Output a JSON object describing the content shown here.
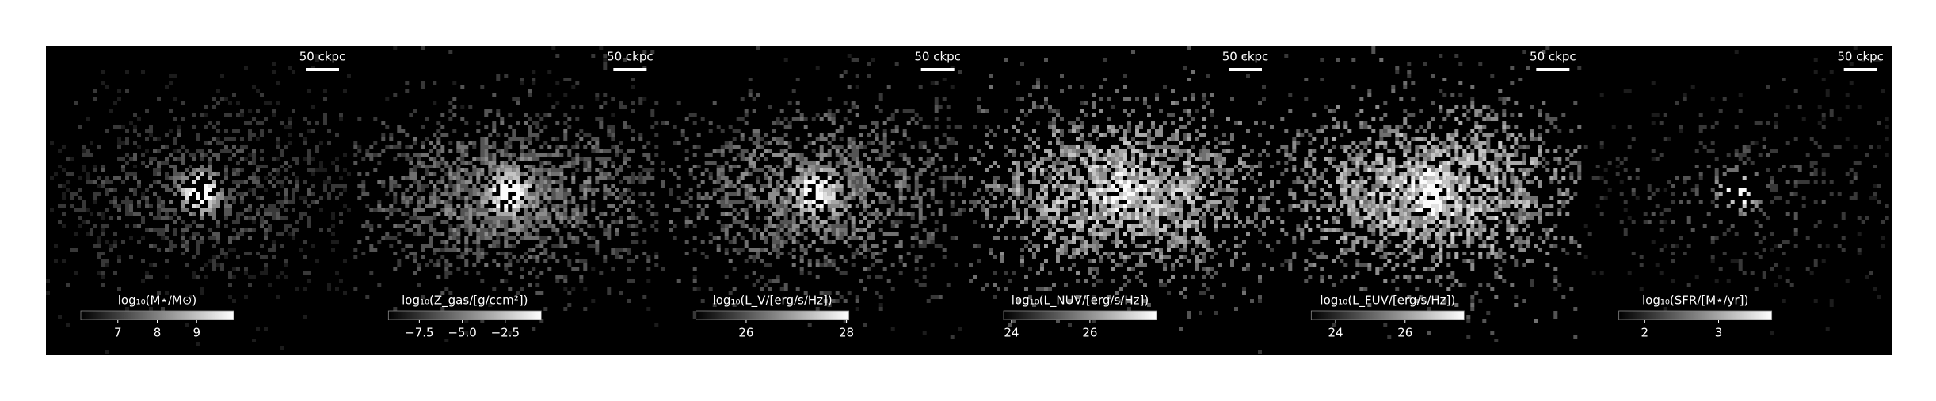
{
  "chart_data": [
    {
      "type": "image-map",
      "scalebar": "50 ckpc",
      "colorbar_label": "log₁₀(M⋆/M⊙)",
      "clim": [
        6.06,
        9.94
      ],
      "cticks": [
        7,
        8,
        9
      ]
    },
    {
      "type": "image-map",
      "scalebar": "50 ckpc",
      "colorbar_label": "log₁₀(Z_gas/[g/ccm²])",
      "clim": [
        -9.3,
        -0.4
      ],
      "cticks": [
        {
          "value": -7.5,
          "label": "−7.5"
        },
        {
          "value": -5.0,
          "label": "−5.0"
        },
        {
          "value": -2.5,
          "label": "−2.5"
        }
      ]
    },
    {
      "type": "image-map",
      "scalebar": "50 ckpc",
      "colorbar_label": "log₁₀(L_V/[erg/s/Hz])",
      "clim": [
        25.0,
        28.05
      ],
      "cticks": [
        26,
        28
      ]
    },
    {
      "type": "image-map",
      "scalebar": "50 ckpc",
      "colorbar_label": "log₁₀(L_NUV/[erg/s/Hz])",
      "clim": [
        23.8,
        27.7
      ],
      "cticks": [
        24,
        26
      ]
    },
    {
      "type": "image-map",
      "scalebar": "50 ckpc",
      "colorbar_label": "log₁₀(L_FUV/[erg/s/Hz])",
      "clim": [
        23.3,
        27.7
      ],
      "cticks": [
        24,
        26
      ]
    },
    {
      "type": "image-map",
      "scalebar": "50 ckpc",
      "colorbar_label": "log₁₀(SFR/[M⋆/yr])",
      "clim": [
        1.65,
        3.72
      ],
      "cticks": [
        2,
        3
      ]
    }
  ]
}
